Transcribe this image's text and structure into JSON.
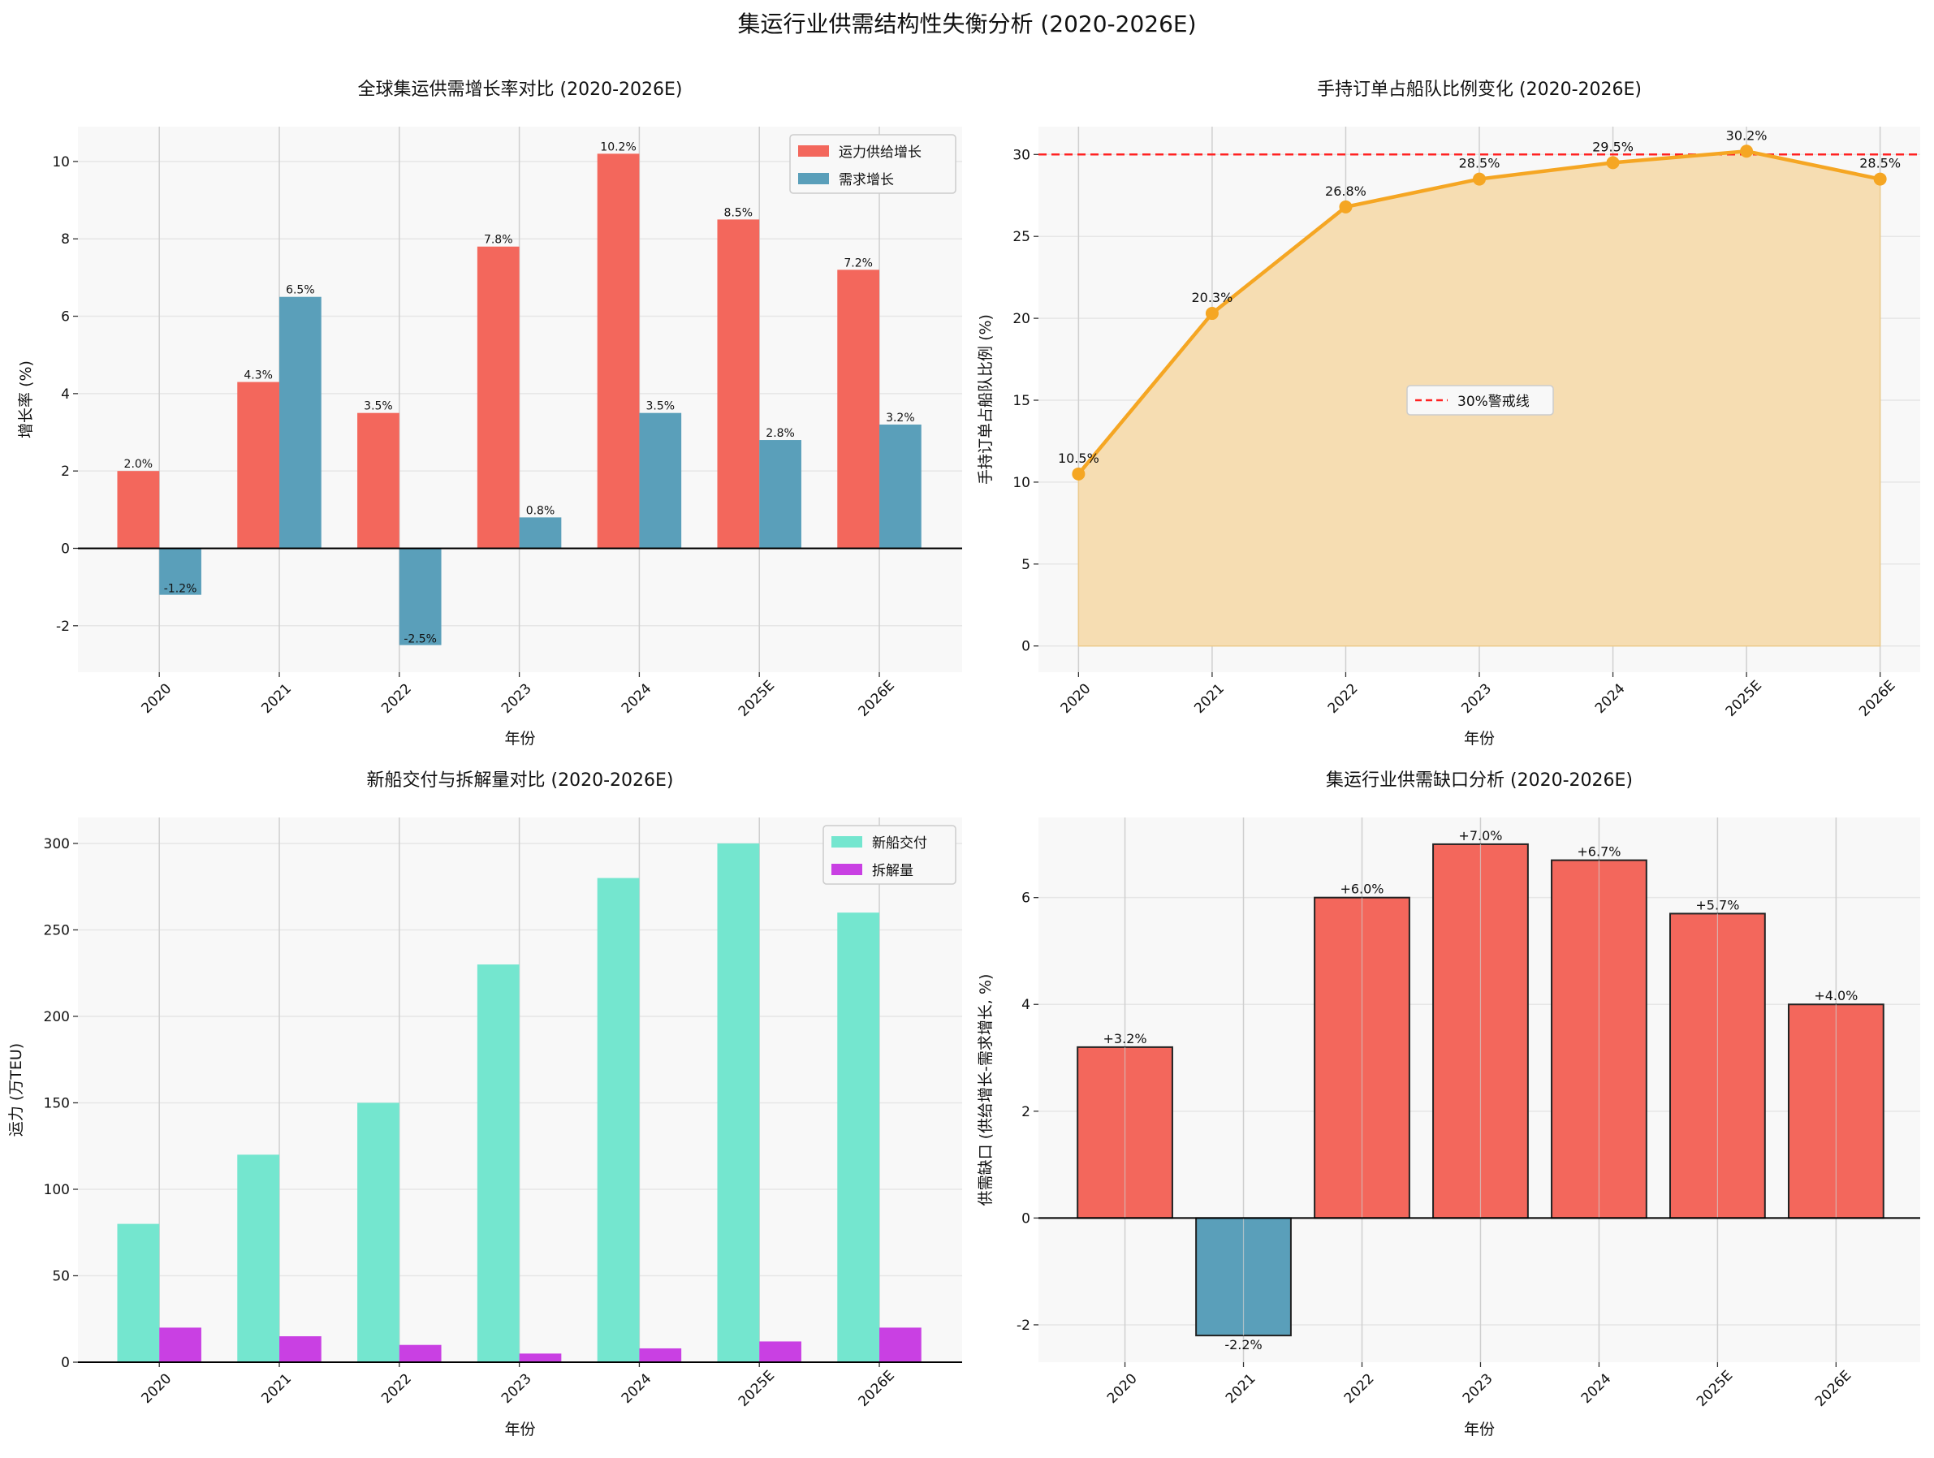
{
  "suptitle": "集运行业供需结构性失衡分析 (2020-2026E)",
  "chart_data": [
    {
      "type": "bar",
      "title": "全球集运供需增长率对比 (2020-2026E)",
      "xlabel": "年份",
      "ylabel": "增长率 (%)",
      "categories": [
        "2020",
        "2021",
        "2022",
        "2023",
        "2024",
        "2025E",
        "2026E"
      ],
      "ylim": [
        -3.2,
        10.9
      ],
      "yticks": [
        -2,
        0,
        2,
        4,
        6,
        8,
        10
      ],
      "grid": true,
      "legend": "top-right",
      "series": [
        {
          "name": "运力供给增长",
          "color": "#f3675c",
          "values": [
            2.0,
            4.3,
            3.5,
            7.8,
            10.2,
            8.5,
            7.2
          ],
          "labels": [
            "2.0%",
            "4.3%",
            "3.5%",
            "7.8%",
            "10.2%",
            "8.5%",
            "7.2%"
          ]
        },
        {
          "name": "需求增长",
          "color": "#5a9fba",
          "values": [
            -1.2,
            6.5,
            -2.5,
            0.8,
            3.5,
            2.8,
            3.2
          ],
          "labels": [
            "-1.2%",
            "6.5%",
            "-2.5%",
            "0.8%",
            "3.5%",
            "2.8%",
            "3.2%"
          ]
        }
      ]
    },
    {
      "type": "line",
      "title": "手持订单占船队比例变化 (2020-2026E)",
      "xlabel": "年份",
      "ylabel": "手持订单占船队比例 (%)",
      "categories": [
        "2020",
        "2021",
        "2022",
        "2023",
        "2024",
        "2025E",
        "2026E"
      ],
      "ylim": [
        -1.6,
        31.7
      ],
      "yticks": [
        0,
        5,
        10,
        15,
        20,
        25,
        30
      ],
      "grid": true,
      "legend": "center",
      "series": [
        {
          "color": "#f5a623",
          "fill": "#f6ddb2",
          "values": [
            10.5,
            20.3,
            26.8,
            28.5,
            29.5,
            30.2,
            28.5
          ],
          "labels": [
            "10.5%",
            "20.3%",
            "26.8%",
            "28.5%",
            "29.5%",
            "30.2%",
            "28.5%"
          ]
        }
      ],
      "reference_line": {
        "name": "30%警戒线",
        "value": 30,
        "color": "#ff2222",
        "style": "dashed"
      }
    },
    {
      "type": "bar",
      "title": "新船交付与拆解量对比 (2020-2026E)",
      "xlabel": "年份",
      "ylabel": "运力 (万TEU)",
      "categories": [
        "2020",
        "2021",
        "2022",
        "2023",
        "2024",
        "2025E",
        "2026E"
      ],
      "ylim": [
        0,
        315
      ],
      "yticks": [
        0,
        50,
        100,
        150,
        200,
        250,
        300
      ],
      "grid": true,
      "legend": "top-right",
      "series": [
        {
          "name": "新船交付",
          "color": "#74e6cf",
          "values": [
            80,
            120,
            150,
            230,
            280,
            300,
            260
          ]
        },
        {
          "name": "拆解量",
          "color": "#c940e3",
          "values": [
            20,
            15,
            10,
            5,
            8,
            12,
            20
          ]
        }
      ]
    },
    {
      "type": "bar",
      "title": "集运行业供需缺口分析 (2020-2026E)",
      "xlabel": "年份",
      "ylabel": "供需缺口 (供给增长-需求增长, %)",
      "categories": [
        "2020",
        "2021",
        "2022",
        "2023",
        "2024",
        "2025E",
        "2026E"
      ],
      "ylim": [
        -2.7,
        7.5
      ],
      "yticks": [
        -2,
        0,
        2,
        4,
        6
      ],
      "grid": true,
      "positive_color": "#f3675c",
      "negative_color": "#5a9fba",
      "values": [
        3.2,
        -2.2,
        6.0,
        7.0,
        6.7,
        5.7,
        4.0
      ],
      "labels": [
        "+3.2%",
        "-2.2%",
        "+6.0%",
        "+7.0%",
        "+6.7%",
        "+5.7%",
        "+4.0%"
      ]
    }
  ]
}
